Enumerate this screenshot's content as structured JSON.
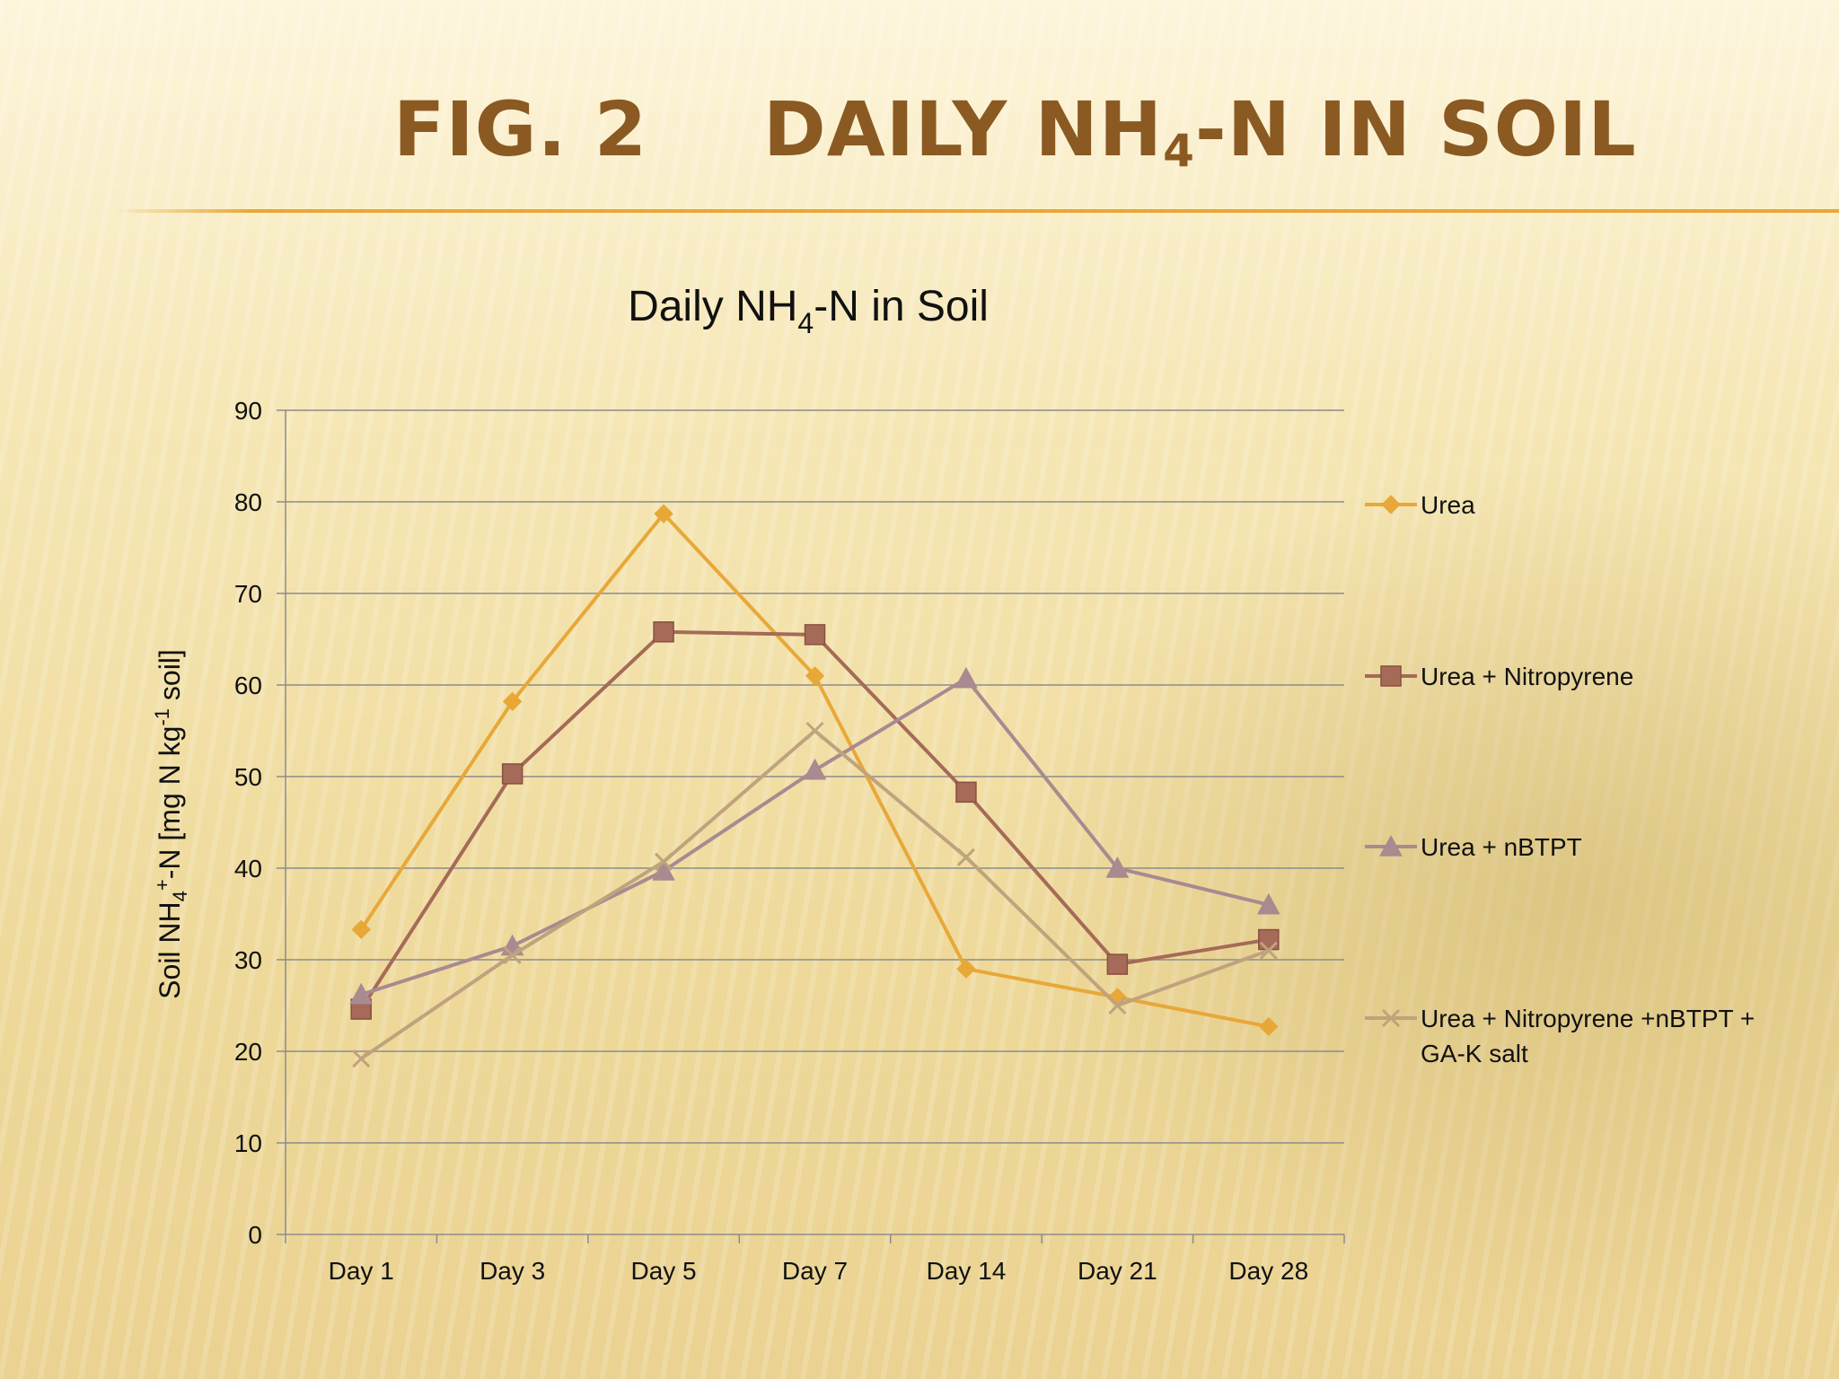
{
  "slide": {
    "title_fig": "FIG. 2",
    "title_main_pre": "DAILY NH",
    "title_main_sub": "4",
    "title_main_post": "-N IN SOIL"
  },
  "chart_data": {
    "type": "line",
    "title_pre": "Daily NH",
    "title_sub": "4",
    "title_post": "-N  in Soil",
    "ylabel": "Soil NH4+-N [mg N kg-1 soil]",
    "ylabel_parts": {
      "a": "Soil NH",
      "b": "4",
      "c": "+",
      "d": "-N [mg N kg",
      "e": "-1",
      "f": " soil]"
    },
    "categories": [
      "Day 1",
      "Day 3",
      "Day 5",
      "Day 7",
      "Day 14",
      "Day 21",
      "Day 28"
    ],
    "ylim": [
      0,
      90
    ],
    "yticks": [
      0,
      10,
      20,
      30,
      40,
      50,
      60,
      70,
      80,
      90
    ],
    "grid": true,
    "legend_position": "right",
    "series": [
      {
        "name": "Urea",
        "marker": "diamond",
        "color": "#e8a838",
        "values": [
          33.3,
          58.2,
          78.7,
          61.0,
          29.0,
          25.9,
          22.7
        ]
      },
      {
        "name": "Urea + Nitropyrene",
        "marker": "square",
        "color": "#a56a58",
        "values": [
          24.6,
          50.3,
          65.8,
          65.5,
          48.3,
          29.5,
          32.2
        ]
      },
      {
        "name": "Urea + nBTPT",
        "marker": "triangle",
        "color": "#a88a90",
        "values": [
          26.2,
          31.5,
          39.7,
          50.7,
          60.7,
          40.0,
          36.0
        ]
      },
      {
        "name": "Urea + Nitropyrene +nBTPT + GA-K salt",
        "legend_lines": [
          "Urea + Nitropyrene +nBTPT +",
          "GA-K salt"
        ],
        "marker": "x",
        "color": "#bfa27e",
        "values": [
          19.2,
          30.5,
          40.7,
          55.0,
          41.2,
          25.0,
          31.0
        ]
      }
    ]
  }
}
